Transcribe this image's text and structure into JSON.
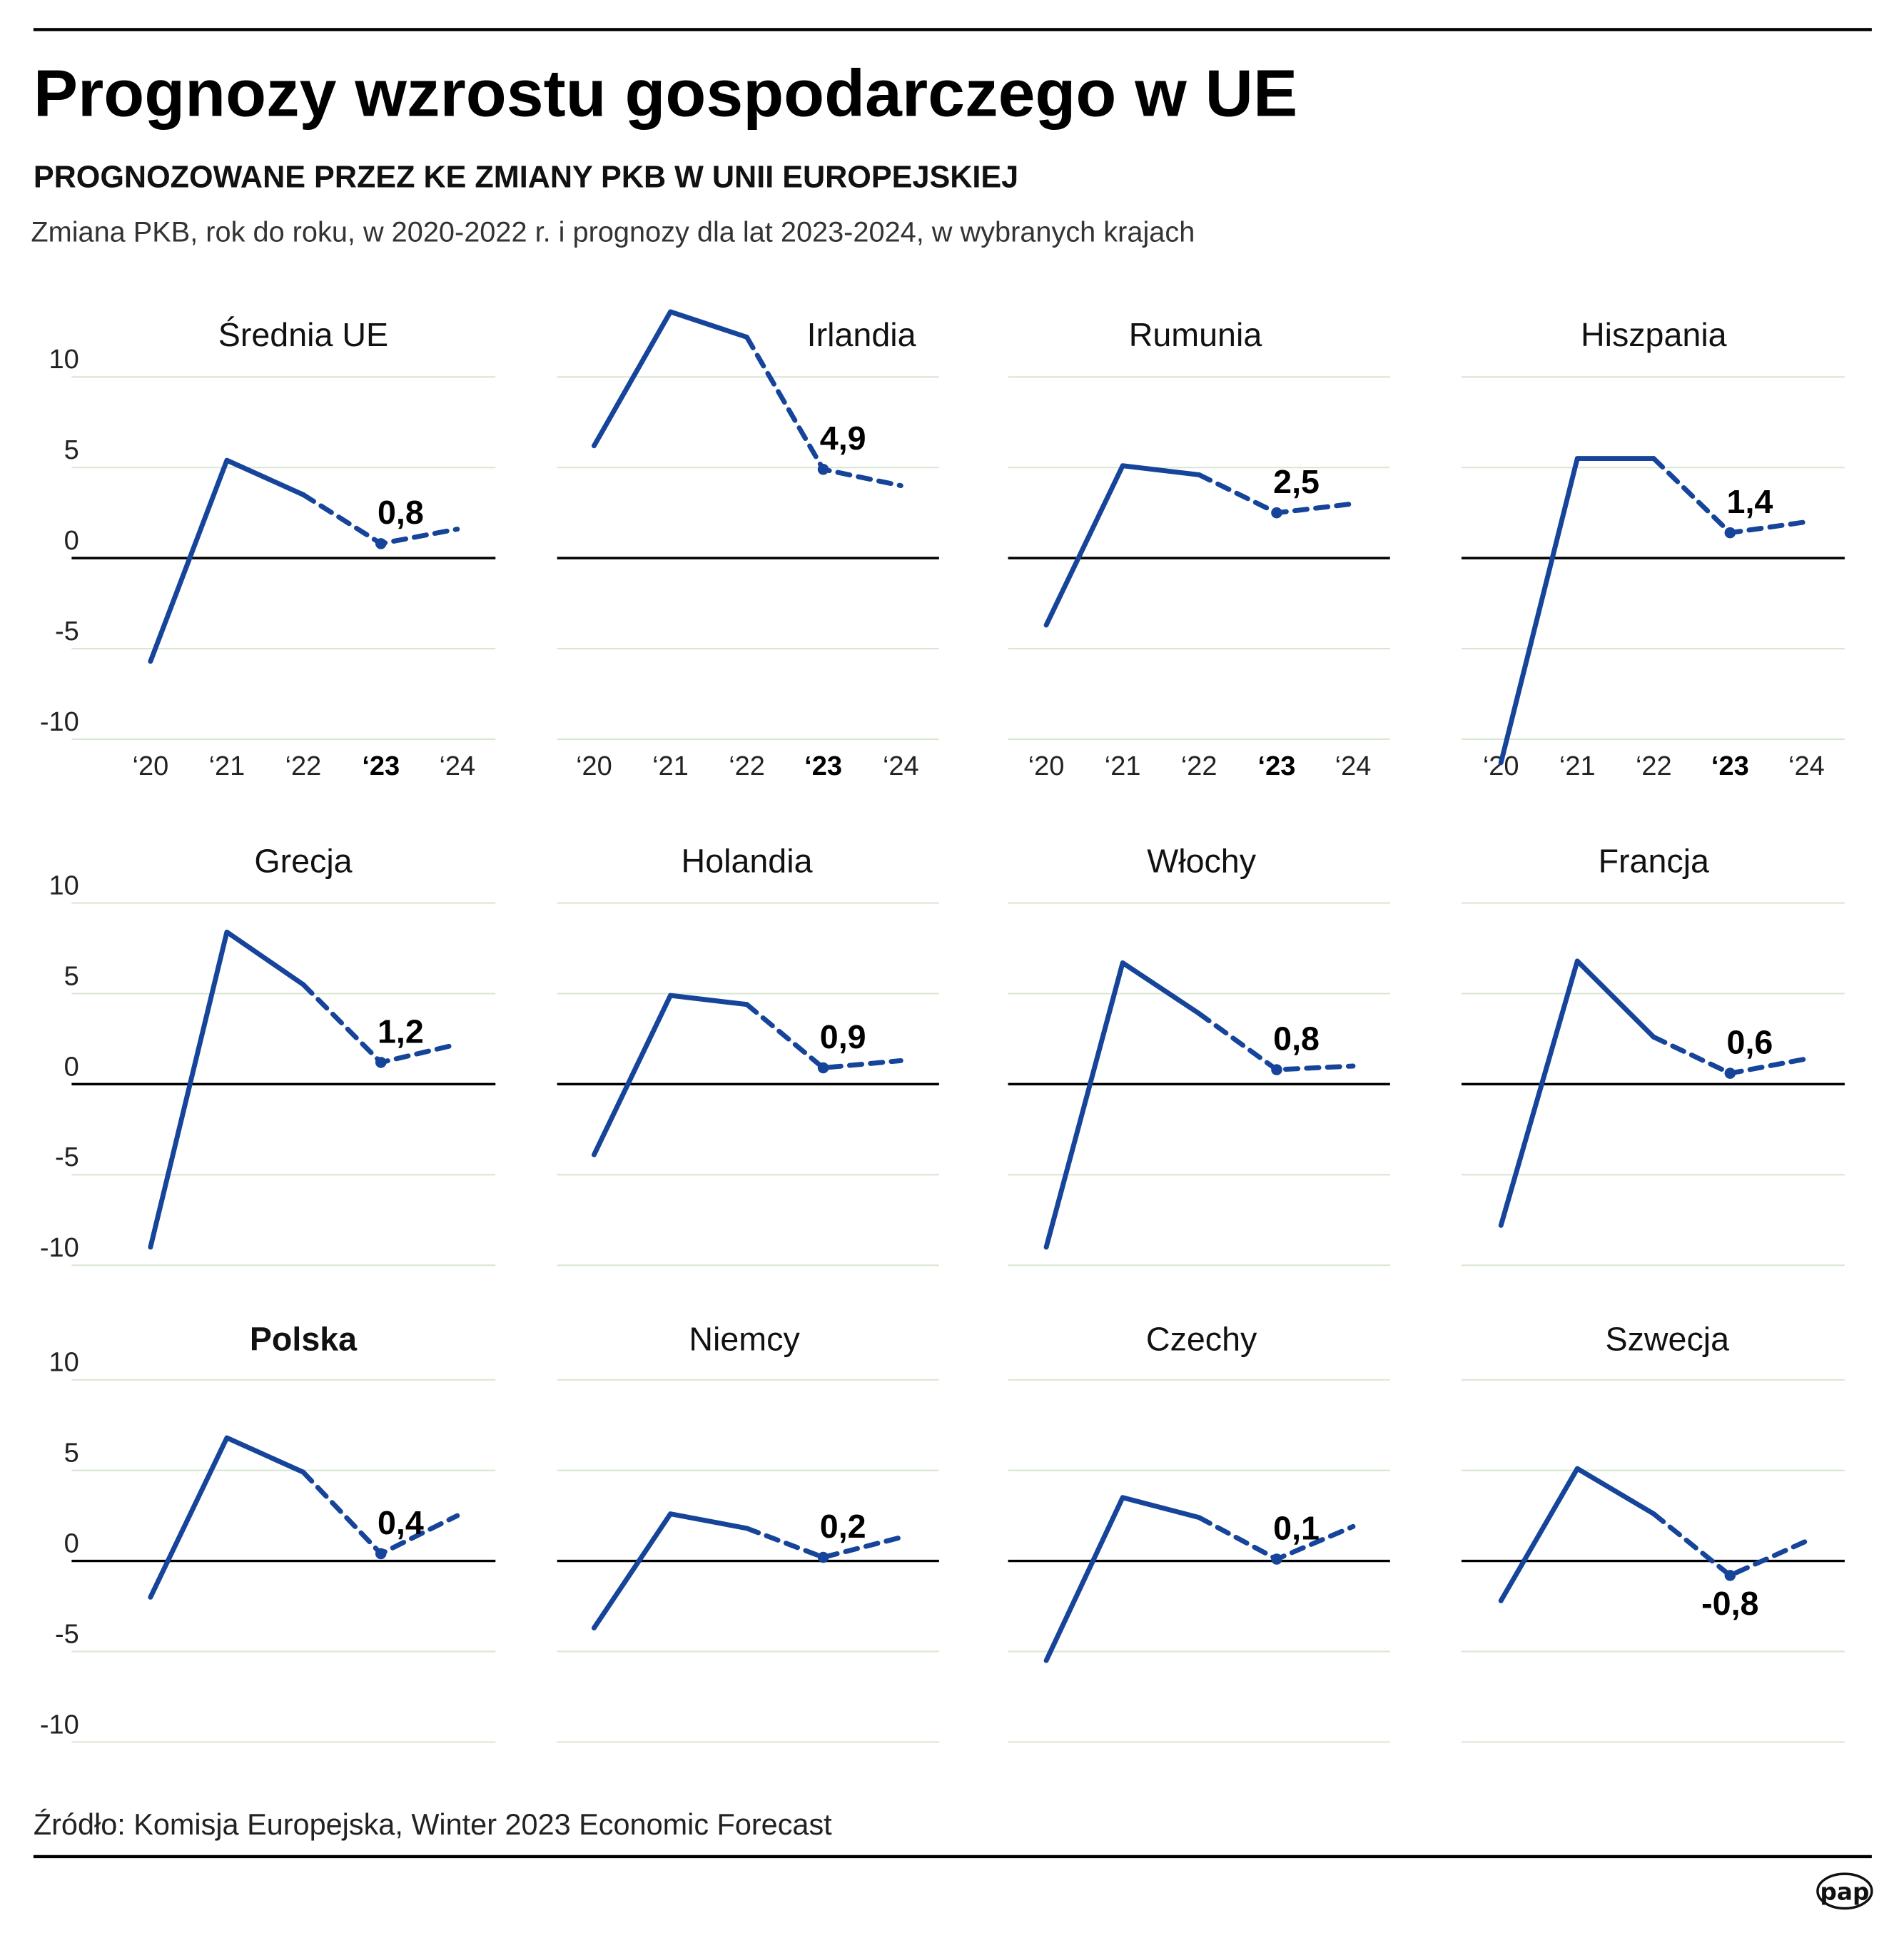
{
  "header": {
    "title": "Prognozy wzrostu gospodarczego w UE",
    "subtitle": "PROGNOZOWANE PRZEZ KE ZMIANY PKB W UNII EUROPEJSKIEJ",
    "description": "Zmiana PKB, rok do roku, w 2020-2022 r. i prognozy dla lat 2023-2024, w wybranych krajach"
  },
  "footer": {
    "source": "Źródło: Komisja Europejska, Winter 2023 Economic Forecast",
    "logo_text": "pap"
  },
  "colors": {
    "line": "#15449a",
    "grid": "#d9e6d2",
    "zero_line": "#000000"
  },
  "chart_data": {
    "type": "line",
    "layout": "small multiples 4x3",
    "x_categories": [
      "‘20",
      "‘21",
      "‘22",
      "‘23",
      "‘24"
    ],
    "highlight_category": "‘23",
    "forecast_from": "‘22",
    "ylim": [
      -10,
      10
    ],
    "y_ticks": [
      "10",
      "5",
      "0",
      "-5",
      "-10"
    ],
    "y_tick_values": [
      10,
      5,
      0,
      -5,
      -10
    ],
    "grid": true,
    "panels": [
      {
        "title": "Średnia UE",
        "values": [
          -5.7,
          5.4,
          3.5,
          0.8,
          1.6
        ],
        "label": "0,8"
      },
      {
        "title": "Irlandia",
        "values": [
          6.2,
          13.6,
          12.2,
          4.9,
          4.0
        ],
        "label": "4,9"
      },
      {
        "title": "Rumunia",
        "values": [
          -3.7,
          5.1,
          4.6,
          2.5,
          3.0
        ],
        "label": "2,5"
      },
      {
        "title": "Hiszpania",
        "values": [
          -11.3,
          5.5,
          5.5,
          1.4,
          2.0
        ],
        "label": "1,4"
      },
      {
        "title": "Grecja",
        "values": [
          -9.0,
          8.4,
          5.5,
          1.2,
          2.2
        ],
        "label": "1,2"
      },
      {
        "title": "Holandia",
        "values": [
          -3.9,
          4.9,
          4.4,
          0.9,
          1.3
        ],
        "label": "0,9"
      },
      {
        "title": "Włochy",
        "values": [
          -9.0,
          6.7,
          3.9,
          0.8,
          1.0
        ],
        "label": "0,8"
      },
      {
        "title": "Francja",
        "values": [
          -7.8,
          6.8,
          2.6,
          0.6,
          1.4
        ],
        "label": "0,6"
      },
      {
        "title": "Polska",
        "values": [
          -2.0,
          6.8,
          4.9,
          0.4,
          2.5
        ],
        "label": "0,4",
        "bold": true
      },
      {
        "title": "Niemcy",
        "values": [
          -3.7,
          2.6,
          1.8,
          0.2,
          1.3
        ],
        "label": "0,2"
      },
      {
        "title": "Czechy",
        "values": [
          -5.5,
          3.5,
          2.4,
          0.1,
          1.9
        ],
        "label": "0,1"
      },
      {
        "title": "Szwecja",
        "values": [
          -2.2,
          5.1,
          2.6,
          -0.8,
          1.1
        ],
        "label": "-0,8"
      }
    ]
  }
}
